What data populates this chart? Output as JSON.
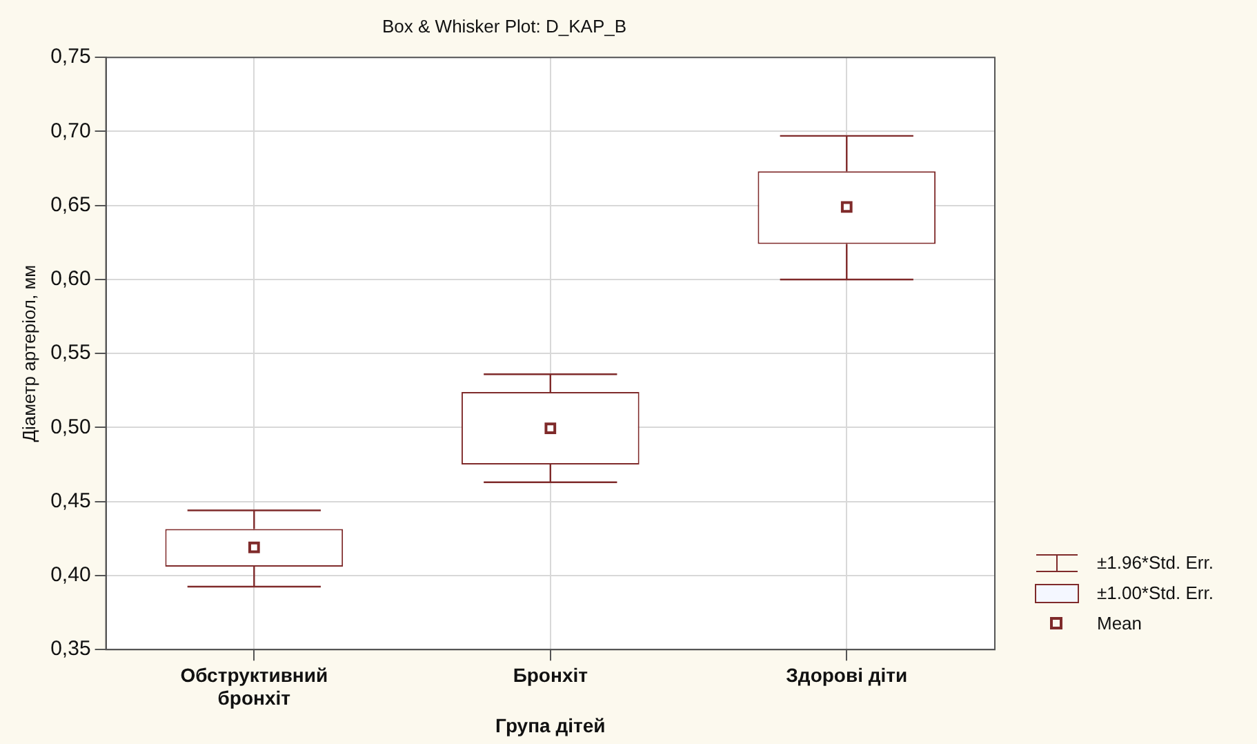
{
  "chart_data": {
    "type": "box",
    "title": "Box & Whisker Plot: D_KAP_B",
    "xlabel": "Група дітей",
    "ylabel": "Діаметр артеріол, мм",
    "categories": [
      "Обструктивний бронхіт",
      "Бронхіт",
      "Здорові діти"
    ],
    "series": [
      {
        "name": "±1.00*Std. Err.",
        "color": "#7f2a2a",
        "boxes": [
          {
            "low": 0.3925,
            "q1": 0.406,
            "q3": 0.4315,
            "high": 0.444,
            "mean": 0.419
          },
          {
            "low": 0.463,
            "q1": 0.475,
            "q3": 0.524,
            "high": 0.536,
            "mean": 0.4995
          },
          {
            "low": 0.6,
            "q1": 0.624,
            "q3": 0.673,
            "high": 0.697,
            "mean": 0.649
          }
        ]
      }
    ],
    "annotations": [
      "±1.96*Std. Err.",
      "Mean"
    ],
    "ylim": [
      0.35,
      0.75
    ],
    "yticks": [
      {
        "value": 0.35,
        "label": "0,35"
      },
      {
        "value": 0.4,
        "label": "0,40"
      },
      {
        "value": 0.45,
        "label": "0,45"
      },
      {
        "value": 0.5,
        "label": "0,50"
      },
      {
        "value": 0.55,
        "label": "0,55"
      },
      {
        "value": 0.6,
        "label": "0,60"
      },
      {
        "value": 0.65,
        "label": "0,65"
      },
      {
        "value": 0.7,
        "label": "0,70"
      },
      {
        "value": 0.75,
        "label": "0,75"
      }
    ],
    "grid": true,
    "legend": "bottom right",
    "marker": "square"
  }
}
